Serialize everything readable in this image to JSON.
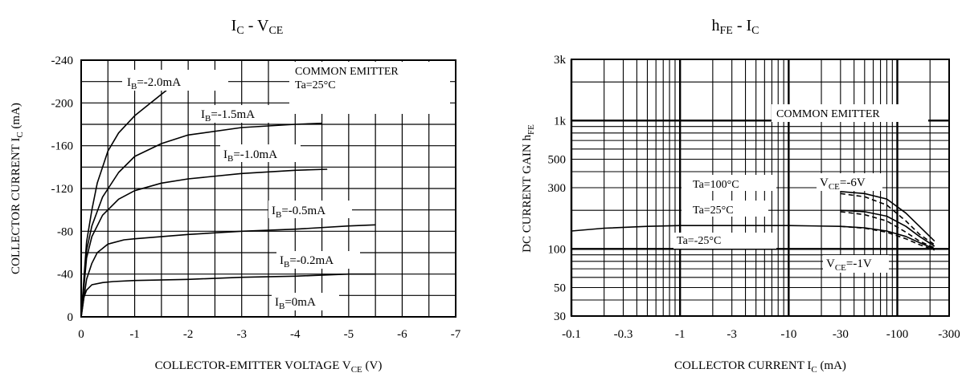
{
  "chart_data": [
    {
      "type": "line",
      "title": "I_C - V_CE",
      "title_main": "I",
      "title_sub": "C",
      "title_rest": " - V",
      "title_sub2": "CE",
      "xlabel": "COLLECTOR-EMITTER VOLTAGE V",
      "xlabel_sub": "CE",
      "xlabel_unit": " (V)",
      "ylabel": "COLLECTOR CURRENT I",
      "ylabel_sub": "C",
      "ylabel_unit": " (mA)",
      "xlim": [
        0,
        -7
      ],
      "ylim": [
        0,
        -240
      ],
      "x_ticks": [
        0,
        -1,
        -2,
        -3,
        -4,
        -5,
        -6,
        -7
      ],
      "x_tick_labels": [
        "0",
        "-1",
        "-2",
        "-3",
        "-4",
        "-5",
        "-6",
        "-7"
      ],
      "y_ticks": [
        0,
        -40,
        -80,
        -120,
        -160,
        -200,
        -240
      ],
      "y_tick_labels": [
        "0",
        "-40",
        "-80",
        "-120",
        "-160",
        "-200",
        "-240"
      ],
      "grid": true,
      "annotations": [
        "COMMON EMITTER",
        "Ta=25°C"
      ],
      "series": [
        {
          "name": "I_B=-2.0mA",
          "label_main": "I",
          "label_sub": "B",
          "label_rest": "=-2.0mA",
          "x": [
            0,
            -0.1,
            -0.2,
            -0.3,
            -0.5,
            -0.7,
            -1.0,
            -1.3,
            -1.6
          ],
          "y": [
            0,
            -70,
            -100,
            -125,
            -155,
            -172,
            -188,
            -200,
            -212
          ]
        },
        {
          "name": "I_B=-1.5mA",
          "label_main": "I",
          "label_sub": "B",
          "label_rest": "=-1.5mA",
          "x": [
            0,
            -0.1,
            -0.2,
            -0.4,
            -0.7,
            -1.0,
            -1.5,
            -2.0,
            -3.0,
            -4.0,
            -4.5
          ],
          "y": [
            0,
            -62,
            -85,
            -112,
            -135,
            -150,
            -162,
            -170,
            -177,
            -180,
            -181
          ]
        },
        {
          "name": "I_B=-1.0mA",
          "label_main": "I",
          "label_sub": "B",
          "label_rest": "=-1.0mA",
          "x": [
            0,
            -0.1,
            -0.2,
            -0.4,
            -0.7,
            -1.0,
            -1.5,
            -2.0,
            -3.0,
            -4.0,
            -4.6
          ],
          "y": [
            0,
            -55,
            -75,
            -95,
            -110,
            -118,
            -125,
            -129,
            -134,
            -137,
            -138
          ]
        },
        {
          "name": "I_B=-0.5mA",
          "label_main": "I",
          "label_sub": "B",
          "label_rest": "=-0.5mA",
          "x": [
            0,
            -0.1,
            -0.2,
            -0.3,
            -0.5,
            -0.8,
            -1.0,
            -2.0,
            -3.0,
            -4.0,
            -5.0,
            -5.5
          ],
          "y": [
            0,
            -35,
            -50,
            -60,
            -68,
            -72,
            -73,
            -77,
            -80,
            -82,
            -85,
            -86
          ]
        },
        {
          "name": "I_B=-0.2mA",
          "label_main": "I",
          "label_sub": "B",
          "label_rest": "=-0.2mA",
          "x": [
            0,
            -0.05,
            -0.1,
            -0.2,
            -0.4,
            -0.6,
            -1.0,
            -2.0,
            -3.0,
            -4.0,
            -5.0,
            -5.5
          ],
          "y": [
            0,
            -18,
            -25,
            -30,
            -32,
            -33,
            -34,
            -35,
            -37,
            -38,
            -40,
            -40
          ]
        },
        {
          "name": "I_B=0mA",
          "label_main": "I",
          "label_sub": "B",
          "label_rest": "=0mA",
          "x": [],
          "y": []
        }
      ]
    },
    {
      "type": "line",
      "title": "h_FE - I_C",
      "title_main": "h",
      "title_sub": "FE",
      "title_rest": " - I",
      "title_sub2": "C",
      "xlabel": "COLLECTOR CURRENT I",
      "xlabel_sub": "C",
      "xlabel_unit": " (mA)",
      "ylabel": "DC CURRENT GAIN h",
      "ylabel_sub": "FE",
      "ylabel_unit": "",
      "x_scale": "log",
      "y_scale": "log",
      "xlim": [
        -0.1,
        -300
      ],
      "ylim": [
        30,
        3000
      ],
      "x_ticks": [
        -0.1,
        -0.3,
        -1,
        -3,
        -10,
        -30,
        -100,
        -300
      ],
      "x_tick_labels": [
        "-0.1",
        "-0.3",
        "-1",
        "-3",
        "-10",
        "-30",
        "-100",
        "-300"
      ],
      "y_ticks": [
        30,
        50,
        100,
        300,
        500,
        1000,
        3000
      ],
      "y_tick_labels": [
        "30",
        "50",
        "100",
        "300",
        "500",
        "1k",
        "3k"
      ],
      "grid": true,
      "annotations": [
        "COMMON EMITTER"
      ],
      "temp_labels": [
        "Ta=100°C",
        "Ta=25°C",
        "Ta=-25°C"
      ],
      "vce_labels": [
        {
          "main": "V",
          "sub": "CE",
          "rest": "=-6V"
        },
        {
          "main": "V",
          "sub": "CE",
          "rest": "=-1V"
        }
      ],
      "series": [
        {
          "x": [
            -30,
            -50,
            -80,
            -120,
            -160,
            -220
          ],
          "y": [
            280,
            270,
            245,
            190,
            150,
            115
          ],
          "style": "solid"
        },
        {
          "x": [
            -30,
            -50,
            -80,
            -120,
            -160,
            -220
          ],
          "y": [
            270,
            255,
            220,
            165,
            130,
            108
          ],
          "style": "dashed"
        },
        {
          "x": [
            -30,
            -50,
            -80,
            -120,
            -160,
            -220
          ],
          "y": [
            200,
            195,
            180,
            150,
            125,
            105
          ],
          "style": "solid"
        },
        {
          "x": [
            -30,
            -50,
            -80,
            -120,
            -160,
            -220
          ],
          "y": [
            195,
            185,
            165,
            135,
            115,
            102
          ],
          "style": "dashed"
        },
        {
          "x": [
            -0.1,
            -0.2,
            -0.5,
            -1,
            -3,
            -10,
            -30,
            -50,
            -80,
            -120,
            -160,
            -220
          ],
          "y": [
            138,
            145,
            150,
            152,
            152,
            152,
            150,
            146,
            138,
            125,
            112,
            100
          ],
          "style": "solid"
        },
        {
          "x": [
            -30,
            -50,
            -80,
            -120,
            -160,
            -220
          ],
          "y": [
            150,
            145,
            135,
            120,
            108,
            98
          ],
          "style": "dashed"
        }
      ]
    }
  ]
}
